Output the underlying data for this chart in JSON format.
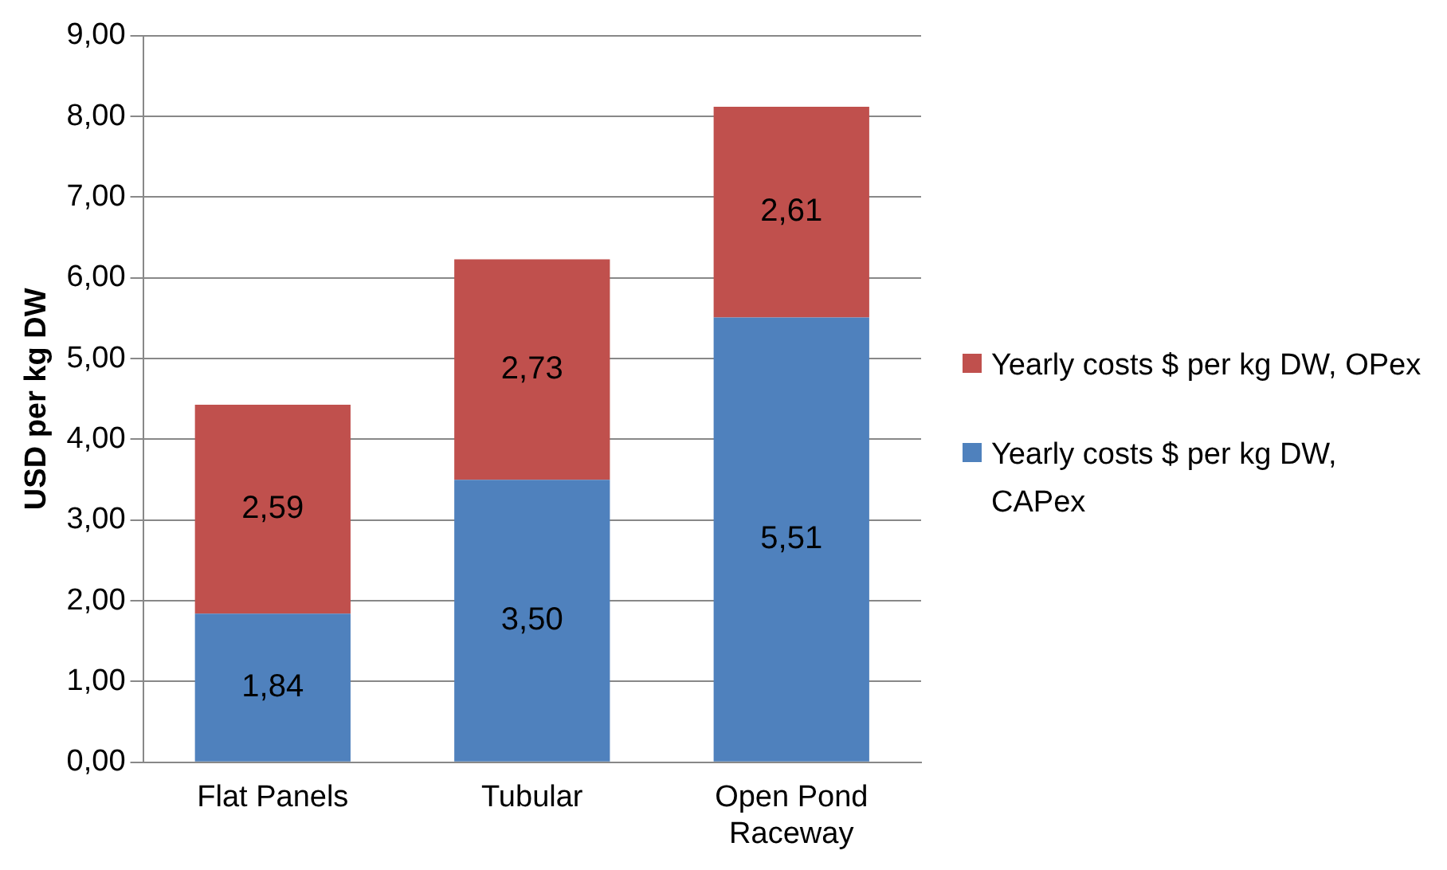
{
  "chart_data": {
    "type": "bar",
    "stacked": true,
    "ylabel": "USD per kg DW",
    "categories": [
      "Flat Panels",
      "Tubular",
      "Open Pond Raceway"
    ],
    "series": [
      {
        "name": "Yearly costs $ per kg DW, CAPex",
        "color": "#4f81bd",
        "values": [
          1.84,
          3.5,
          5.51
        ],
        "value_labels": [
          "1,84",
          "3,50",
          "5,51"
        ]
      },
      {
        "name": "Yearly costs $ per kg DW, OPex",
        "color": "#c0504d",
        "values": [
          2.59,
          2.73,
          2.61
        ],
        "value_labels": [
          "2,59",
          "2,73",
          "2,61"
        ]
      }
    ],
    "ylim": [
      0,
      9
    ],
    "yticks": [
      {
        "value": 0,
        "label": "0,00"
      },
      {
        "value": 1,
        "label": "1,00"
      },
      {
        "value": 2,
        "label": "2,00"
      },
      {
        "value": 3,
        "label": "3,00"
      },
      {
        "value": 4,
        "label": "4,00"
      },
      {
        "value": 5,
        "label": "5,00"
      },
      {
        "value": 6,
        "label": "6,00"
      },
      {
        "value": 7,
        "label": "7,00"
      },
      {
        "value": 8,
        "label": "8,00"
      },
      {
        "value": 9,
        "label": "9,00"
      }
    ],
    "grid": "y",
    "legend": "right"
  }
}
